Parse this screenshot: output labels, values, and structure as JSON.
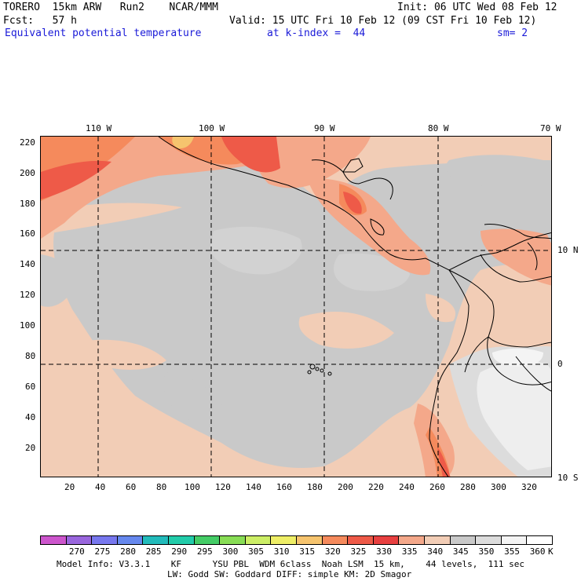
{
  "header": {
    "line1_left": "TORERO  15km ARW   Run2    NCAR/MMM",
    "line1_right": "Init: 06 UTC Wed 08 Feb 12",
    "line2_left": "Fcst:   57 h",
    "line2_right": "Valid: 15 UTC Fri 10 Feb 12 (09 CST Fri 10 Feb 12)",
    "field_name": "Equivalent potential temperature",
    "level": "at k-index =  44",
    "smoothing": "sm= 2"
  },
  "map": {
    "top_lon_labels": [
      "110 W",
      "100 W",
      "90 W",
      "80 W",
      "70 W"
    ],
    "right_lat_labels": [
      "10 N",
      "0",
      "10 S"
    ],
    "left_axis_labels": [
      "220",
      "200",
      "180",
      "160",
      "140",
      "120",
      "100",
      "80",
      "60",
      "40",
      "20"
    ],
    "bottom_axis_labels": [
      "20",
      "40",
      "60",
      "80",
      "100",
      "120",
      "140",
      "160",
      "180",
      "200",
      "220",
      "240",
      "260",
      "280",
      "300",
      "320"
    ],
    "left_axis_range": [
      0,
      228
    ],
    "bottom_axis_range": [
      0,
      336
    ],
    "colors": {
      "background": "#f2cdb6",
      "gray": "#c9c9c9",
      "light_gray": "#dcdcdc",
      "white": "#f4f4f4",
      "salmon": "#f4a88a",
      "orange": "#f58a5c",
      "red": "#ee5a48",
      "yellow": "#f6c46e"
    }
  },
  "colorbar": {
    "labels": [
      "270",
      "275",
      "280",
      "285",
      "290",
      "295",
      "300",
      "305",
      "310",
      "315",
      "320",
      "325",
      "330",
      "335",
      "340",
      "345",
      "350",
      "355",
      "360"
    ],
    "unit": "K",
    "colors": [
      "#cc55cc",
      "#9966dd",
      "#7777ee",
      "#6688ee",
      "#22bbbb",
      "#22ccaa",
      "#44cc66",
      "#88dd55",
      "#ccee66",
      "#eeee66",
      "#f6c46e",
      "#f58a5c",
      "#ee5a48",
      "#e84040",
      "#f4a88a",
      "#f2cdb6",
      "#c9c9c9",
      "#dcdcdc",
      "#f4f4f4",
      "#ffffff"
    ]
  },
  "footer": {
    "line1": "Model Info: V3.3.1    KF      YSU PBL  WDM 6class  Noah LSM  15 km,    44 levels,  111 sec",
    "line2": "LW: Godd SW: Goddard DIFF: simple KM: 2D Smagor"
  }
}
